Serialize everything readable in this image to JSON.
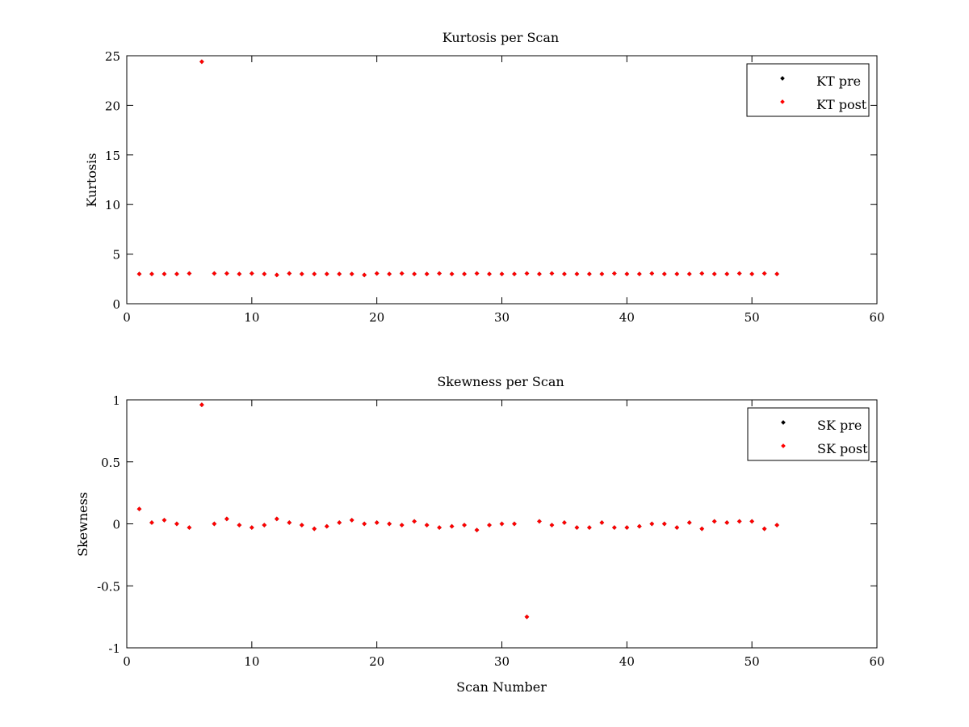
{
  "chart_data": [
    {
      "type": "scatter",
      "title": "Kurtosis per Scan",
      "xlabel": "",
      "ylabel": "Kurtosis",
      "xlim": [
        0,
        60
      ],
      "ylim": [
        0,
        25
      ],
      "xticks": [
        "0",
        "10",
        "20",
        "30",
        "40",
        "50",
        "60"
      ],
      "yticks": [
        "0",
        "5",
        "10",
        "15",
        "20",
        "25"
      ],
      "legend_position": "top-right",
      "series": [
        {
          "name": "KT pre",
          "color": "#000000",
          "x": [
            1,
            2,
            3,
            4,
            5,
            6,
            7,
            8,
            9,
            10,
            11,
            12,
            13,
            14,
            15,
            16,
            17,
            18,
            19,
            20,
            21,
            22,
            23,
            24,
            25,
            26,
            27,
            28,
            29,
            30,
            31,
            32,
            33,
            34,
            35,
            36,
            37,
            38,
            39,
            40,
            41,
            42,
            43,
            44,
            45,
            46,
            47,
            48,
            49,
            50,
            51,
            52
          ],
          "y": [
            3.0,
            3.0,
            3.0,
            3.0,
            3.05,
            24.4,
            3.05,
            3.05,
            3.0,
            3.05,
            3.0,
            2.9,
            3.05,
            3.0,
            3.0,
            3.0,
            3.0,
            3.0,
            2.9,
            3.05,
            3.0,
            3.05,
            3.0,
            3.0,
            3.05,
            3.0,
            3.0,
            3.05,
            3.0,
            3.0,
            3.0,
            3.05,
            3.0,
            3.05,
            3.0,
            3.0,
            3.0,
            3.0,
            3.05,
            3.0,
            3.0,
            3.05,
            3.0,
            3.0,
            3.0,
            3.05,
            3.0,
            3.0,
            3.05,
            3.0,
            3.05,
            3.0
          ]
        },
        {
          "name": "KT post",
          "color": "#ff0000",
          "x": [
            1,
            2,
            3,
            4,
            5,
            6,
            7,
            8,
            9,
            10,
            11,
            12,
            13,
            14,
            15,
            16,
            17,
            18,
            19,
            20,
            21,
            22,
            23,
            24,
            25,
            26,
            27,
            28,
            29,
            30,
            31,
            32,
            33,
            34,
            35,
            36,
            37,
            38,
            39,
            40,
            41,
            42,
            43,
            44,
            45,
            46,
            47,
            48,
            49,
            50,
            51,
            52
          ],
          "y": [
            3.0,
            3.0,
            3.0,
            3.0,
            3.05,
            24.4,
            3.05,
            3.05,
            3.0,
            3.05,
            3.0,
            2.9,
            3.05,
            3.0,
            3.0,
            3.0,
            3.0,
            3.0,
            2.9,
            3.05,
            3.0,
            3.05,
            3.0,
            3.0,
            3.05,
            3.0,
            3.0,
            3.05,
            3.0,
            3.0,
            3.0,
            3.05,
            3.0,
            3.05,
            3.0,
            3.0,
            3.0,
            3.0,
            3.05,
            3.0,
            3.0,
            3.05,
            3.0,
            3.0,
            3.0,
            3.05,
            3.0,
            3.0,
            3.05,
            3.0,
            3.05,
            3.0
          ]
        }
      ]
    },
    {
      "type": "scatter",
      "title": "Skewness per Scan",
      "xlabel": "Scan Number",
      "ylabel": "Skewness",
      "xlim": [
        0,
        60
      ],
      "ylim": [
        -1,
        1
      ],
      "xticks": [
        "0",
        "10",
        "20",
        "30",
        "40",
        "50",
        "60"
      ],
      "yticks": [
        "-1",
        "-0.5",
        "0",
        "0.5",
        "1"
      ],
      "legend_position": "top-right",
      "series": [
        {
          "name": "SK pre",
          "color": "#000000",
          "x": [
            1,
            2,
            3,
            4,
            5,
            6,
            7,
            8,
            9,
            10,
            11,
            12,
            13,
            14,
            15,
            16,
            17,
            18,
            19,
            20,
            21,
            22,
            23,
            24,
            25,
            26,
            27,
            28,
            29,
            30,
            31,
            32,
            33,
            34,
            35,
            36,
            37,
            38,
            39,
            40,
            41,
            42,
            43,
            44,
            45,
            46,
            47,
            48,
            49,
            50,
            51,
            52
          ],
          "y": [
            0.12,
            0.01,
            0.03,
            0.0,
            -0.03,
            0.96,
            0.0,
            0.04,
            -0.01,
            -0.03,
            -0.01,
            0.04,
            0.01,
            -0.01,
            -0.04,
            -0.02,
            0.01,
            0.03,
            0.0,
            0.01,
            0.0,
            -0.01,
            0.02,
            -0.01,
            -0.03,
            -0.02,
            -0.01,
            -0.05,
            -0.01,
            0.0,
            0.0,
            -0.75,
            0.02,
            -0.01,
            0.01,
            -0.03,
            -0.03,
            0.01,
            -0.03,
            -0.03,
            -0.02,
            0.0,
            0.0,
            -0.03,
            0.01,
            -0.04,
            0.02,
            0.01,
            0.02,
            0.02,
            -0.04,
            -0.01
          ]
        },
        {
          "name": "SK post",
          "color": "#ff0000",
          "x": [
            1,
            2,
            3,
            4,
            5,
            6,
            7,
            8,
            9,
            10,
            11,
            12,
            13,
            14,
            15,
            16,
            17,
            18,
            19,
            20,
            21,
            22,
            23,
            24,
            25,
            26,
            27,
            28,
            29,
            30,
            31,
            32,
            33,
            34,
            35,
            36,
            37,
            38,
            39,
            40,
            41,
            42,
            43,
            44,
            45,
            46,
            47,
            48,
            49,
            50,
            51,
            52
          ],
          "y": [
            0.12,
            0.01,
            0.03,
            0.0,
            -0.03,
            0.96,
            0.0,
            0.04,
            -0.01,
            -0.03,
            -0.01,
            0.04,
            0.01,
            -0.01,
            -0.04,
            -0.02,
            0.01,
            0.03,
            0.0,
            0.01,
            0.0,
            -0.01,
            0.02,
            -0.01,
            -0.03,
            -0.02,
            -0.01,
            -0.05,
            -0.01,
            0.0,
            0.0,
            -0.75,
            0.02,
            -0.01,
            0.01,
            -0.03,
            -0.03,
            0.01,
            -0.03,
            -0.03,
            -0.02,
            0.0,
            0.0,
            -0.03,
            0.01,
            -0.04,
            0.02,
            0.01,
            0.02,
            0.02,
            -0.04,
            -0.01
          ]
        }
      ]
    }
  ]
}
